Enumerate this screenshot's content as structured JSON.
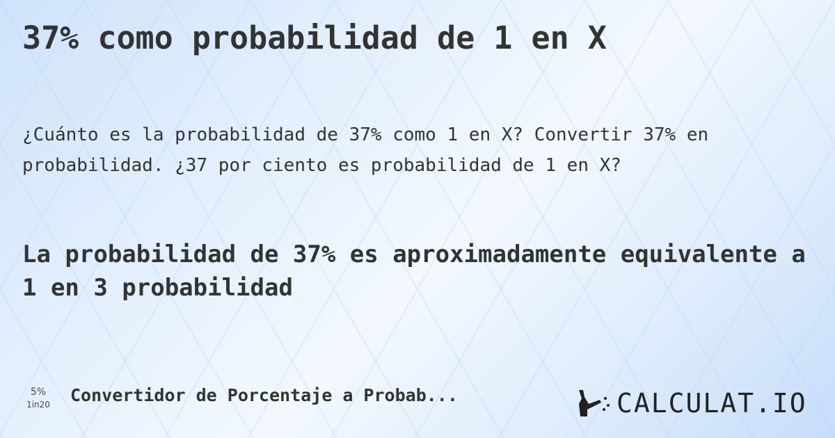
{
  "title": "37% como probabilidad de 1 en X",
  "question": "¿Cuánto es la probabilidad de 37% como 1 en X? Convertir 37% en probabilidad. ¿37 por ciento es probabilidad de 1 en X?",
  "answer": "La probabilidad de 37% es aproximadamente equivalente a 1 en 3 probabilidad",
  "footer": {
    "icon_top": "5%",
    "icon_bottom": "1in20",
    "tool_name": "Convertidor de Porcentaje a Probab...",
    "logo_text": "CALCULAT.IO"
  },
  "colors": {
    "text": "#333333",
    "background": "#dcebfc"
  }
}
